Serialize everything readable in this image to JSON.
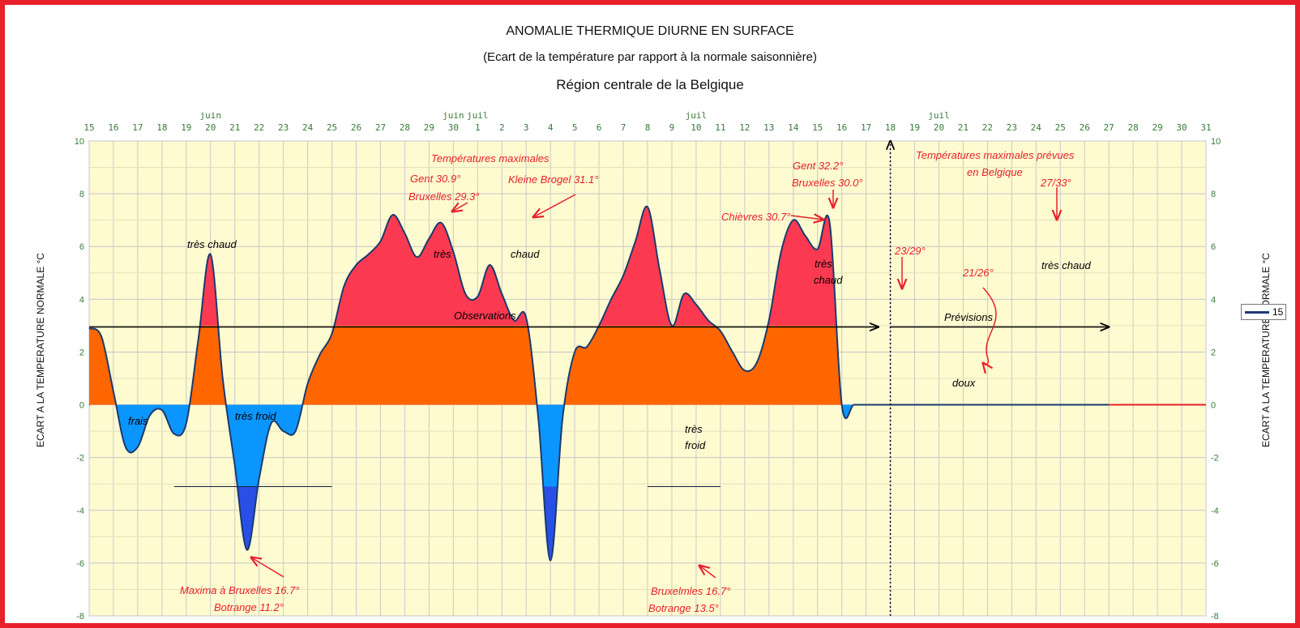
{
  "chart_data": {
    "type": "area",
    "title": "ANOMALIE THERMIQUE DIURNE EN SURFACE",
    "subtitle": "(Ecart de la température par rapport à la normale saisonnière)",
    "region": "Région centrale de la Belgique",
    "ylabel": "ECART A LA TEMPERATURE NORMALE °C",
    "ylim": [
      -8,
      10
    ],
    "yticks": [
      -8,
      -6,
      -4,
      -2,
      0,
      2,
      4,
      6,
      8,
      10
    ],
    "grid": true,
    "legend": {
      "position": "right",
      "entries": [
        "15"
      ]
    },
    "x_tick_labels": [
      {
        "x": 0,
        "label": "15"
      },
      {
        "x": 1,
        "label": "16"
      },
      {
        "x": 2,
        "label": "17"
      },
      {
        "x": 3,
        "label": "18"
      },
      {
        "x": 4,
        "label": "19"
      },
      {
        "x": 5,
        "label": "20"
      },
      {
        "x": 6,
        "label": "21"
      },
      {
        "x": 7,
        "label": "22"
      },
      {
        "x": 8,
        "label": "23"
      },
      {
        "x": 9,
        "label": "24"
      },
      {
        "x": 10,
        "label": "25"
      },
      {
        "x": 11,
        "label": "26"
      },
      {
        "x": 12,
        "label": "27"
      },
      {
        "x": 13,
        "label": "28"
      },
      {
        "x": 14,
        "label": "29"
      },
      {
        "x": 15,
        "label": "30"
      },
      {
        "x": 16,
        "label": "1"
      },
      {
        "x": 17,
        "label": "2"
      },
      {
        "x": 18,
        "label": "3"
      },
      {
        "x": 19,
        "label": "4"
      },
      {
        "x": 20,
        "label": "5"
      },
      {
        "x": 21,
        "label": "6"
      },
      {
        "x": 22,
        "label": "7"
      },
      {
        "x": 23,
        "label": "8"
      },
      {
        "x": 24,
        "label": "9"
      },
      {
        "x": 25,
        "label": "10"
      },
      {
        "x": 26,
        "label": "11"
      },
      {
        "x": 27,
        "label": "12"
      },
      {
        "x": 28,
        "label": "13"
      },
      {
        "x": 29,
        "label": "14"
      },
      {
        "x": 30,
        "label": "15"
      },
      {
        "x": 31,
        "label": "16"
      },
      {
        "x": 32,
        "label": "17"
      },
      {
        "x": 33,
        "label": "18"
      },
      {
        "x": 34,
        "label": "19"
      },
      {
        "x": 35,
        "label": "20"
      },
      {
        "x": 36,
        "label": "21"
      },
      {
        "x": 37,
        "label": "22"
      },
      {
        "x": 38,
        "label": "23"
      },
      {
        "x": 39,
        "label": "24"
      },
      {
        "x": 40,
        "label": "25"
      },
      {
        "x": 41,
        "label": "26"
      },
      {
        "x": 42,
        "label": "27"
      },
      {
        "x": 43,
        "label": "28"
      },
      {
        "x": 44,
        "label": "29"
      },
      {
        "x": 45,
        "label": "30"
      },
      {
        "x": 46,
        "label": "31"
      }
    ],
    "month_labels": [
      {
        "x": 5,
        "label": "juin"
      },
      {
        "x": 15,
        "label": "juin"
      },
      {
        "x": 16,
        "label": "juil"
      },
      {
        "x": 25,
        "label": "juil"
      },
      {
        "x": 35,
        "label": "juil"
      }
    ],
    "series": [
      {
        "name": "15",
        "x": [
          0,
          0.5,
          1,
          1.5,
          2,
          2.5,
          3,
          3.5,
          4,
          4.5,
          5,
          5.5,
          6,
          6.5,
          7,
          7.5,
          8,
          8.5,
          9,
          9.5,
          10,
          10.5,
          11,
          11.5,
          12,
          12.5,
          13,
          13.5,
          14,
          14.5,
          15,
          15.5,
          16,
          16.5,
          17,
          17.5,
          18,
          18.5,
          19,
          19.5,
          20,
          20.5,
          21,
          21.5,
          22,
          22.5,
          23,
          23.5,
          24,
          24.5,
          25,
          25.5,
          26,
          26.5,
          27,
          27.5,
          28,
          28.5,
          29,
          29.5,
          30,
          30.5,
          31,
          31.5,
          32,
          32.5,
          33,
          33.5,
          34,
          34.5,
          35,
          35.5,
          36,
          36.5,
          37,
          37.5,
          38,
          38.5,
          39,
          39.5,
          40,
          40.5,
          41,
          41.5,
          42
        ],
        "values": [
          2.9,
          2.6,
          0.5,
          -1.6,
          -1.6,
          -0.4,
          -0.2,
          -1.1,
          -0.7,
          2.5,
          5.7,
          1.0,
          -2.3,
          -5.5,
          -2.8,
          -0.7,
          -1.0,
          -1.0,
          0.8,
          1.9,
          2.7,
          4.5,
          5.3,
          5.7,
          6.2,
          7.2,
          6.5,
          5.6,
          6.3,
          6.9,
          5.8,
          4.2,
          4.1,
          5.3,
          4.2,
          3.2,
          3.3,
          -0.5,
          -5.9,
          -0.5,
          2.0,
          2.2,
          3.0,
          4.0,
          4.9,
          6.2,
          7.5,
          5.1,
          3.0,
          4.2,
          3.8,
          3.2,
          2.8,
          2.0,
          1.3,
          1.6,
          3.2,
          5.8,
          7.0,
          6.4,
          5.9,
          6.9,
          0,
          0,
          0,
          0,
          0,
          0,
          0,
          0,
          0,
          0,
          0,
          0,
          0,
          0,
          0,
          0,
          0,
          0,
          0,
          0,
          0,
          0,
          0
        ],
        "observed_until": 33,
        "forecast_until": 42
      }
    ],
    "fill_thresholds": {
      "orange_below": 3,
      "light_blue_above": -3.1
    },
    "colors": {
      "warm": "#fb3a52",
      "mild": "#ff6600",
      "cool": "#0b96ff",
      "cold": "#2a4fe6",
      "line": "#1a3a6e",
      "plot_bg": "#fefbd0",
      "annotation": "#e8202b",
      "frame": "#e8202b"
    },
    "annotations": {
      "tres_chaud_1": "très chaud",
      "frais": "frais",
      "tres_froid_1": "très froid",
      "maxima_1a": "Maxima à Bruxelles 16.7°",
      "maxima_1b": "Botrange 11.2°",
      "temp_max": "Températures maximales",
      "gent_1": "Gent 30.9°",
      "brux_1": "Bruxelles 29.3°",
      "kleine": "Kleine Brogel 31.1°",
      "tres_2": "très",
      "chaud_2": "chaud",
      "observations": "Observations",
      "tres_froid_2a": "très",
      "tres_froid_2b": "froid",
      "maxima_2a": "Bruxelmles 16.7°",
      "maxima_2b": "Botrange 13.5°",
      "gent_2": "Gent 32.2°",
      "brux_2": "Bruxelles 30.0°",
      "chievres": "Chièvres 30.7°",
      "tres_chaud_3a": "très",
      "tres_chaud_3b": "chaud",
      "prev_title_a": "Températures maximales prévues",
      "prev_title_b": "en Belgique",
      "prev_1": "27/33°",
      "prev_2": "23/29°",
      "prev_3": "21/26°",
      "previsions": "Prévisions",
      "doux": "doux",
      "tres_chaud_4": "très chaud"
    }
  }
}
